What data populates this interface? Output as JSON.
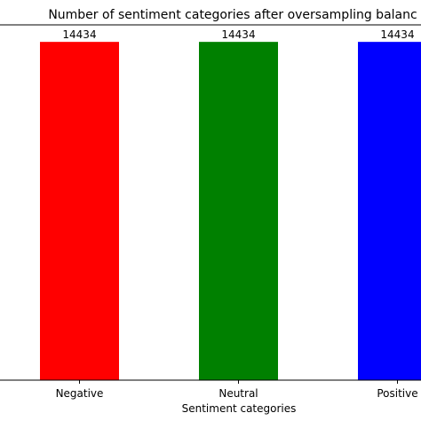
{
  "chart_data": {
    "type": "bar",
    "title": "Number of sentiment categories after oversampling balanc",
    "xlabel": "Sentiment categories",
    "ylabel": "",
    "categories": [
      "Negative",
      "Neutral",
      "Positive"
    ],
    "values": [
      14434,
      14434,
      14434
    ],
    "data_labels": [
      "14434",
      "14434",
      "14434"
    ],
    "colors": [
      "#ff0000",
      "#008000",
      "#0000ff"
    ],
    "ylim": [
      0,
      15160
    ],
    "grid": false,
    "legend": "none"
  }
}
